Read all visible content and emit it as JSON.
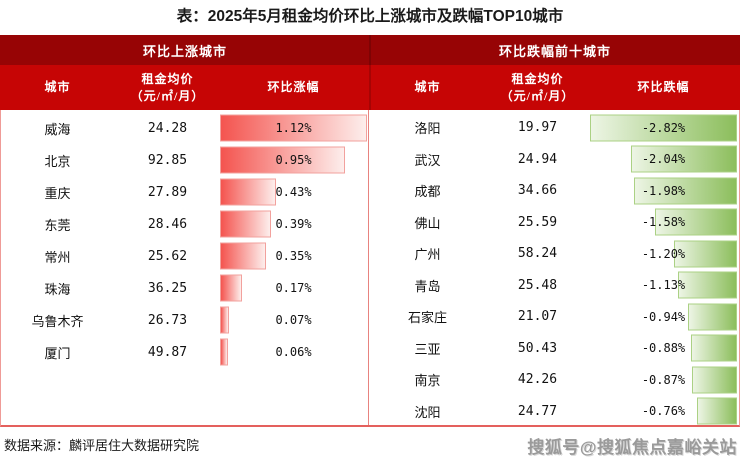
{
  "title": "表：2025年5月租金均价环比上涨城市及跌幅TOP10城市",
  "footer": {
    "source": "数据来源：麟评居住大数据研究院",
    "watermark": "搜狐号@搜狐焦点嘉峪关站"
  },
  "colors": {
    "header_dark_red": "#970405",
    "header_bright_red": "#c60505",
    "increase_bar_gradient": [
      "#f4544f",
      "#fdeeec"
    ],
    "increase_bar_border": "#f2a19d",
    "decrease_bar_gradient": [
      "#edf5e5",
      "#8cbe5c"
    ],
    "decrease_bar_border": "#abd184",
    "table_border": "#e4605d"
  },
  "tables": {
    "left": {
      "group_header": "环比上涨城市",
      "col_city": "城市",
      "col_price_line1": "租金均价",
      "col_price_line2": "（元/㎡/月）",
      "col_change": "环比涨幅",
      "bar_scale_max": 1.12,
      "rows": [
        {
          "city": "威海",
          "price": "24.28",
          "pct": "1.12%",
          "change": 1.12
        },
        {
          "city": "北京",
          "price": "92.85",
          "pct": "0.95%",
          "change": 0.95
        },
        {
          "city": "重庆",
          "price": "27.89",
          "pct": "0.43%",
          "change": 0.43
        },
        {
          "city": "东莞",
          "price": "28.46",
          "pct": "0.39%",
          "change": 0.39
        },
        {
          "city": "常州",
          "price": "25.62",
          "pct": "0.35%",
          "change": 0.35
        },
        {
          "city": "珠海",
          "price": "36.25",
          "pct": "0.17%",
          "change": 0.17
        },
        {
          "city": "乌鲁木齐",
          "price": "26.73",
          "pct": "0.07%",
          "change": 0.07
        },
        {
          "city": "厦门",
          "price": "49.87",
          "pct": "0.06%",
          "change": 0.06
        }
      ]
    },
    "right": {
      "group_header": "环比跌幅前十城市",
      "col_city": "城市",
      "col_price_line1": "租金均价",
      "col_price_line2": "（元/㎡/月）",
      "col_change": "环比跌幅",
      "bar_scale_max": 2.82,
      "rows": [
        {
          "city": "洛阳",
          "price": "19.97",
          "pct": "-2.82%",
          "change": -2.82
        },
        {
          "city": "武汉",
          "price": "24.94",
          "pct": "-2.04%",
          "change": -2.04
        },
        {
          "city": "成都",
          "price": "34.66",
          "pct": "-1.98%",
          "change": -1.98
        },
        {
          "city": "佛山",
          "price": "25.59",
          "pct": "-1.58%",
          "change": -1.58
        },
        {
          "city": "广州",
          "price": "58.24",
          "pct": "-1.20%",
          "change": -1.2
        },
        {
          "city": "青岛",
          "price": "25.48",
          "pct": "-1.13%",
          "change": -1.13
        },
        {
          "city": "石家庄",
          "price": "21.07",
          "pct": "-0.94%",
          "change": -0.94
        },
        {
          "city": "三亚",
          "price": "50.43",
          "pct": "-0.88%",
          "change": -0.88
        },
        {
          "city": "南京",
          "price": "42.26",
          "pct": "-0.87%",
          "change": -0.87
        },
        {
          "city": "沈阳",
          "price": "24.77",
          "pct": "-0.76%",
          "change": -0.76
        }
      ]
    }
  },
  "chart_data": [
    {
      "type": "bar",
      "orientation": "horizontal",
      "title": "环比上涨城市",
      "categories": [
        "威海",
        "北京",
        "重庆",
        "东莞",
        "常州",
        "珠海",
        "乌鲁木齐",
        "厦门"
      ],
      "series": [
        {
          "name": "租金均价（元/㎡/月）",
          "values": [
            24.28,
            92.85,
            27.89,
            28.46,
            25.62,
            36.25,
            26.73,
            49.87
          ]
        },
        {
          "name": "环比涨幅(%)",
          "values": [
            1.12,
            0.95,
            0.43,
            0.39,
            0.35,
            0.17,
            0.07,
            0.06
          ]
        }
      ],
      "xlabel": "环比涨幅",
      "ylabel": "城市",
      "xlim": [
        0,
        1.12
      ],
      "grid": false,
      "legend": "none"
    },
    {
      "type": "bar",
      "orientation": "horizontal",
      "title": "环比跌幅前十城市",
      "categories": [
        "洛阳",
        "武汉",
        "成都",
        "佛山",
        "广州",
        "青岛",
        "石家庄",
        "三亚",
        "南京",
        "沈阳"
      ],
      "series": [
        {
          "name": "租金均价（元/㎡/月）",
          "values": [
            19.97,
            24.94,
            34.66,
            25.59,
            58.24,
            25.48,
            21.07,
            50.43,
            42.26,
            24.77
          ]
        },
        {
          "name": "环比跌幅(%)",
          "values": [
            -2.82,
            -2.04,
            -1.98,
            -1.58,
            -1.2,
            -1.13,
            -0.94,
            -0.88,
            -0.87,
            -0.76
          ]
        }
      ],
      "xlabel": "环比跌幅",
      "ylabel": "城市",
      "xlim": [
        -2.82,
        0
      ],
      "grid": false,
      "legend": "none"
    }
  ]
}
